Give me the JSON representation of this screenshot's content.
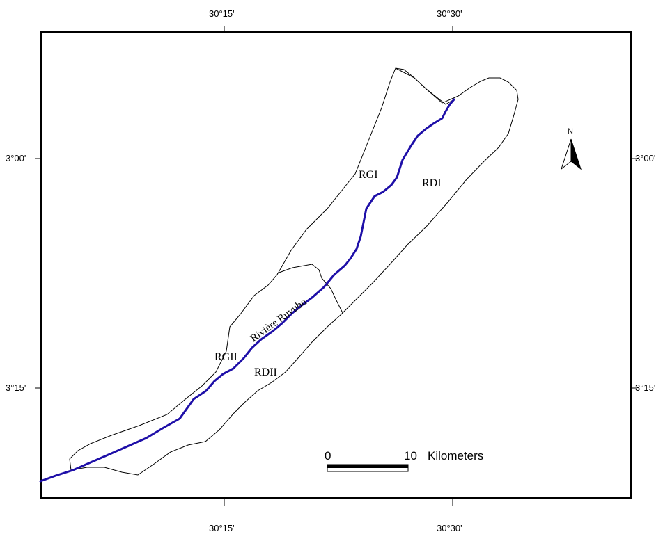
{
  "graticule": {
    "top": [
      "30°15'",
      "30°30'"
    ],
    "bottom": [
      "30°15'",
      "30°30'"
    ],
    "left": [
      "3°00'",
      "3°15'"
    ],
    "right": [
      "3°00'",
      "3°15'"
    ]
  },
  "regions": {
    "rgi": "RGI",
    "rdi": "RDI",
    "rgii": "RGII",
    "rdii": "RDII"
  },
  "river": {
    "name": "Rivière Ruvubu",
    "color": "#1e0fa8"
  },
  "north_arrow": {
    "label": "N"
  },
  "scale_bar": {
    "start": "0",
    "end": "10",
    "unit": "Kilometers"
  }
}
